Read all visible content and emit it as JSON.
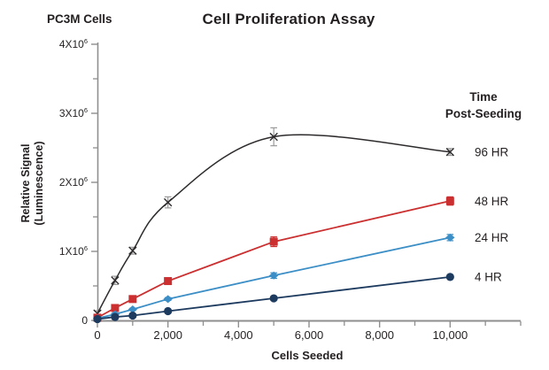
{
  "chart_data": {
    "type": "line",
    "title": "Cell Proliferation Assay",
    "corner_label": "PC3M Cells",
    "xlabel": "Cells Seeded",
    "ylabel_lines": [
      "Relative Signal",
      "(Luminescence)"
    ],
    "legend_title_lines": [
      "Time",
      "Post-Seeding"
    ],
    "legend_position": "right-of-last-point",
    "grid": false,
    "xlim": [
      0,
      12000
    ],
    "ylim": [
      0,
      4000000
    ],
    "x": [
      0,
      500,
      1000,
      2000,
      5000,
      10000
    ],
    "x_major_ticks": [
      {
        "v": 0,
        "label": "0"
      },
      {
        "v": 2000,
        "label": "2,000"
      },
      {
        "v": 4000,
        "label": "4,000"
      },
      {
        "v": 6000,
        "label": "6,000"
      },
      {
        "v": 8000,
        "label": "8,000"
      },
      {
        "v": 10000,
        "label": "10,000"
      }
    ],
    "x_minor_ticks": [
      1000,
      3000,
      5000,
      7000,
      9000,
      11000,
      12000
    ],
    "y_major_ticks": [
      {
        "v": 0,
        "label": "0"
      },
      {
        "v": 1000000,
        "label": "1X10^6"
      },
      {
        "v": 2000000,
        "label": "2X10^6"
      },
      {
        "v": 3000000,
        "label": "3X10^6"
      },
      {
        "v": 4000000,
        "label": "4X10^6"
      }
    ],
    "y_minor_ticks": [
      500000,
      1500000,
      2500000,
      3500000
    ],
    "axis_color": "#8f8f8f",
    "text_color": "#231f20",
    "series": [
      {
        "name": "96 HR",
        "marker": "x",
        "smooth": true,
        "color": "#2e2b2c",
        "err_color": "#9a9a9a",
        "values": [
          100000,
          580000,
          1010000,
          1710000,
          2660000,
          2440000
        ],
        "errors": [
          40000,
          60000,
          50000,
          80000,
          130000,
          50000
        ]
      },
      {
        "name": "48 HR",
        "marker": "square",
        "smooth": false,
        "color": "#cb2f30",
        "err_color": "#cb2f30",
        "values": [
          40000,
          180000,
          310000,
          570000,
          1140000,
          1730000
        ],
        "errors": [
          15000,
          30000,
          30000,
          35000,
          70000,
          60000
        ]
      },
      {
        "name": "24 HR",
        "marker": "diamond",
        "smooth": false,
        "color": "#3b8ec6",
        "err_color": "#3b8ec6",
        "values": [
          30000,
          90000,
          160000,
          310000,
          650000,
          1200000
        ],
        "errors": [
          10000,
          15000,
          15000,
          20000,
          40000,
          45000
        ]
      },
      {
        "name": "4 HR",
        "marker": "circle",
        "smooth": false,
        "color": "#1d3a5f",
        "err_color": "#1d3a5f",
        "values": [
          20000,
          50000,
          70000,
          135000,
          320000,
          630000
        ],
        "errors": [
          8000,
          10000,
          10000,
          15000,
          20000,
          25000
        ]
      }
    ]
  }
}
